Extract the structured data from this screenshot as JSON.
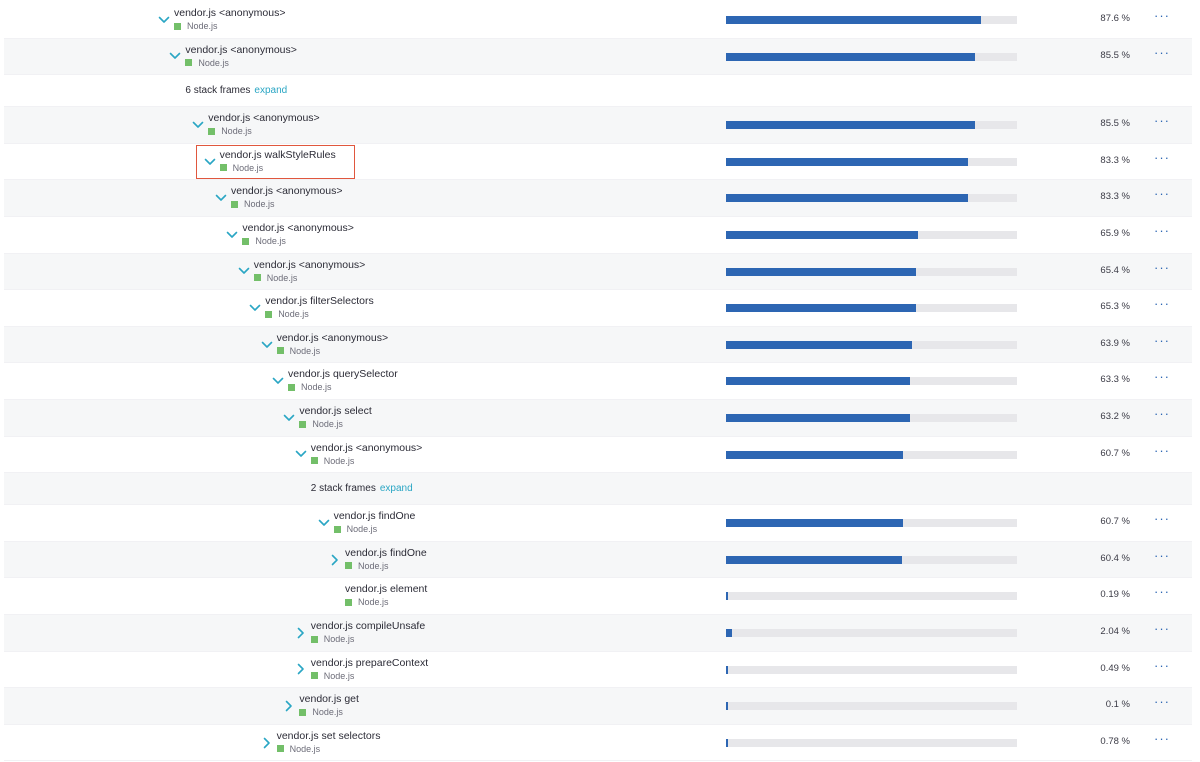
{
  "colors": {
    "bar_fill": "#2d66b3",
    "bar_track": "#e7e7ea",
    "toggle": "#2aa6c4",
    "tech_icon": "#73bf69",
    "highlight": "#e0573e",
    "alt_row": "#f6f7f8"
  },
  "icons": {
    "expanded": "chevron-down-icon",
    "collapsed": "chevron-right-icon",
    "more": "more-horizontal-icon",
    "tech": "node-js-icon"
  },
  "more_label": "···",
  "rows": [
    {
      "kind": "frame",
      "depth": 0,
      "toggle": "expanded",
      "name": "vendor.js <anonymous>",
      "tech": "Node.js",
      "value": 87.6,
      "pct": "87.6 %"
    },
    {
      "kind": "frame",
      "depth": 1,
      "toggle": "expanded",
      "name": "vendor.js <anonymous>",
      "tech": "Node.js",
      "value": 85.5,
      "pct": "85.5 %"
    },
    {
      "kind": "collapsed",
      "depth": 1,
      "label": "6 stack frames",
      "action": "expand"
    },
    {
      "kind": "frame",
      "depth": 3,
      "toggle": "expanded",
      "name": "vendor.js <anonymous>",
      "tech": "Node.js",
      "value": 85.5,
      "pct": "85.5 %"
    },
    {
      "kind": "frame",
      "depth": 4,
      "toggle": "expanded",
      "name": "vendor.js walkStyleRules",
      "tech": "Node.js",
      "value": 83.3,
      "pct": "83.3 %",
      "highlighted": true
    },
    {
      "kind": "frame",
      "depth": 5,
      "toggle": "expanded",
      "name": "vendor.js <anonymous>",
      "tech": "Node.js",
      "value": 83.3,
      "pct": "83.3 %"
    },
    {
      "kind": "frame",
      "depth": 6,
      "toggle": "expanded",
      "name": "vendor.js <anonymous>",
      "tech": "Node.js",
      "value": 65.9,
      "pct": "65.9 %"
    },
    {
      "kind": "frame",
      "depth": 7,
      "toggle": "expanded",
      "name": "vendor.js <anonymous>",
      "tech": "Node.js",
      "value": 65.4,
      "pct": "65.4 %"
    },
    {
      "kind": "frame",
      "depth": 8,
      "toggle": "expanded",
      "name": "vendor.js filterSelectors",
      "tech": "Node.js",
      "value": 65.3,
      "pct": "65.3 %"
    },
    {
      "kind": "frame",
      "depth": 9,
      "toggle": "expanded",
      "name": "vendor.js <anonymous>",
      "tech": "Node.js",
      "value": 63.9,
      "pct": "63.9 %"
    },
    {
      "kind": "frame",
      "depth": 10,
      "toggle": "expanded",
      "name": "vendor.js querySelector",
      "tech": "Node.js",
      "value": 63.3,
      "pct": "63.3 %"
    },
    {
      "kind": "frame",
      "depth": 11,
      "toggle": "expanded",
      "name": "vendor.js select",
      "tech": "Node.js",
      "value": 63.2,
      "pct": "63.2 %"
    },
    {
      "kind": "frame",
      "depth": 12,
      "toggle": "expanded",
      "name": "vendor.js <anonymous>",
      "tech": "Node.js",
      "value": 60.7,
      "pct": "60.7 %"
    },
    {
      "kind": "collapsed",
      "depth": 12,
      "label": "2 stack frames",
      "action": "expand"
    },
    {
      "kind": "frame",
      "depth": 14,
      "toggle": "expanded",
      "name": "vendor.js findOne",
      "tech": "Node.js",
      "value": 60.7,
      "pct": "60.7 %"
    },
    {
      "kind": "frame",
      "depth": 15,
      "toggle": "collapsed",
      "name": "vendor.js findOne",
      "tech": "Node.js",
      "value": 60.4,
      "pct": "60.4 %"
    },
    {
      "kind": "frame",
      "depth": 15,
      "toggle": "none",
      "name": "vendor.js element",
      "tech": "Node.js",
      "value": 0.19,
      "pct": "0.19 %"
    },
    {
      "kind": "frame",
      "depth": 12,
      "toggle": "collapsed",
      "name": "vendor.js compileUnsafe",
      "tech": "Node.js",
      "value": 2.04,
      "pct": "2.04 %"
    },
    {
      "kind": "frame",
      "depth": 12,
      "toggle": "collapsed",
      "name": "vendor.js prepareContext",
      "tech": "Node.js",
      "value": 0.49,
      "pct": "0.49 %"
    },
    {
      "kind": "frame",
      "depth": 11,
      "toggle": "collapsed",
      "name": "vendor.js get",
      "tech": "Node.js",
      "value": 0.1,
      "pct": "0.1 %"
    },
    {
      "kind": "frame",
      "depth": 9,
      "toggle": "collapsed",
      "name": "vendor.js set selectors",
      "tech": "Node.js",
      "value": 0.78,
      "pct": "0.78 %"
    }
  ]
}
